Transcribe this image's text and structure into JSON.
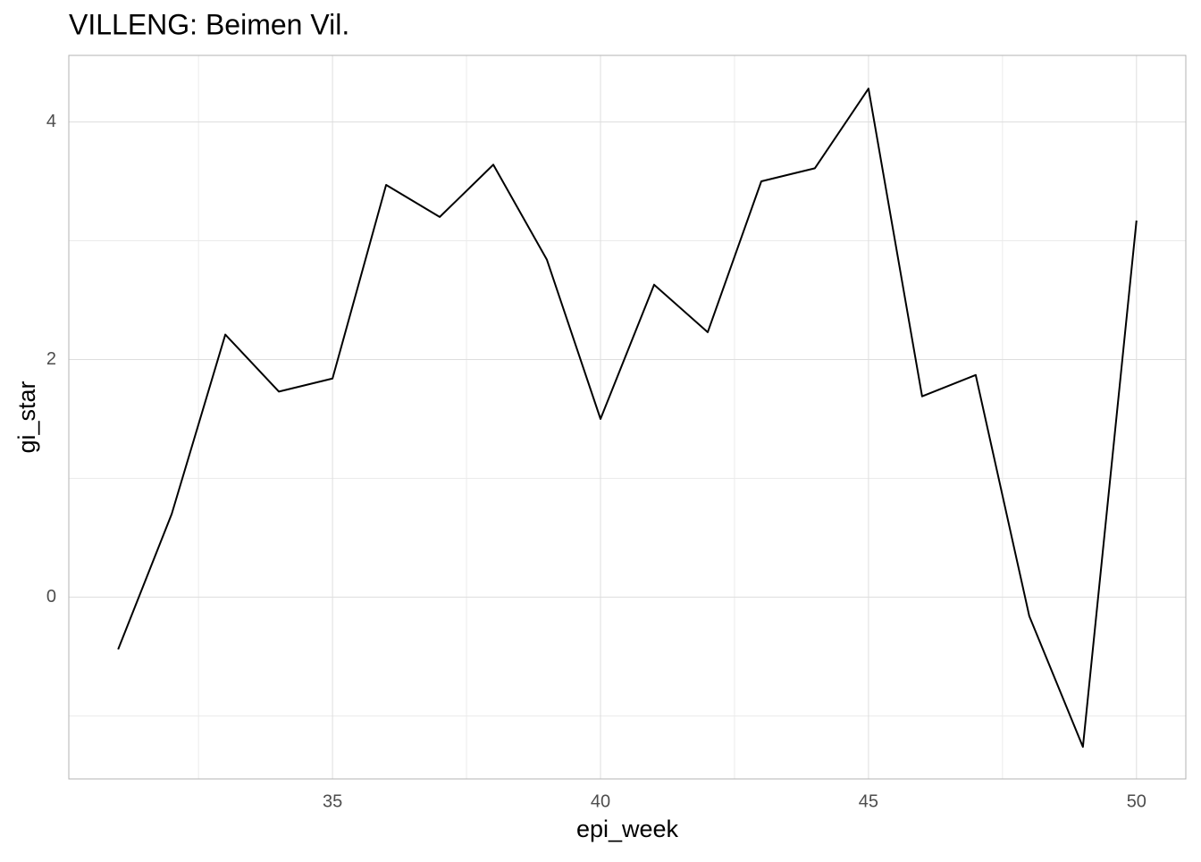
{
  "chart_data": {
    "type": "line",
    "title": "VILLENG: Beimen Vil.",
    "x_label": "epi_week",
    "y_label": "gi_star",
    "x": [
      31,
      32,
      33,
      34,
      35,
      36,
      37,
      38,
      39,
      40,
      41,
      42,
      43,
      44,
      45,
      46,
      47,
      48,
      49,
      50
    ],
    "series": [
      {
        "color": "#000000",
        "values": [
          -0.44,
          0.7,
          2.21,
          1.73,
          1.84,
          3.47,
          3.2,
          3.64,
          2.84,
          1.5,
          2.63,
          2.23,
          3.5,
          3.61,
          4.28,
          1.69,
          1.87,
          -0.16,
          -1.26,
          3.17
        ]
      }
    ],
    "xlim": [
      30.08,
      50.92
    ],
    "ylim": [
      -1.53,
      4.56
    ],
    "xticks": [
      35,
      40,
      45,
      50
    ],
    "yticks": [
      0,
      2,
      4
    ],
    "minor_xticks": [
      32.5,
      37.5,
      42.5,
      47.5
    ],
    "minor_yticks": [
      -1,
      1,
      3
    ],
    "grid": true
  }
}
